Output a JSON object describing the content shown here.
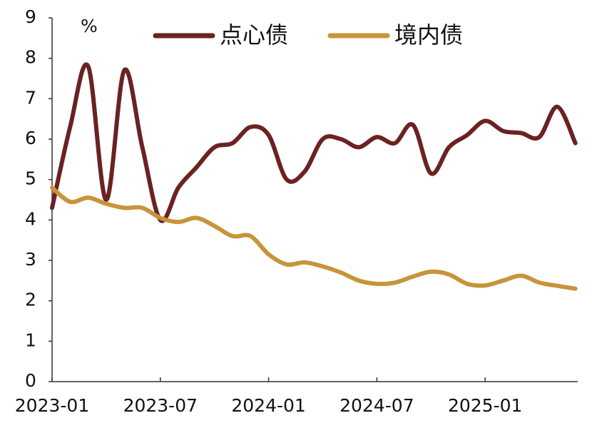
{
  "chart_data": {
    "type": "line",
    "y_label": "%",
    "categories": [
      "2023-01",
      null,
      null,
      null,
      null,
      null,
      "2023-07",
      null,
      null,
      null,
      null,
      null,
      "2024-01",
      null,
      null,
      null,
      null,
      null,
      "2024-07",
      null,
      null,
      null,
      null,
      null,
      "2025-01",
      null,
      null,
      null,
      null,
      null
    ],
    "series": [
      {
        "name": "点心债",
        "color": "#6b2222",
        "values": [
          4.3,
          6.3,
          7.8,
          4.5,
          7.7,
          5.8,
          4.0,
          4.8,
          5.3,
          5.8,
          5.9,
          6.3,
          6.1,
          5.0,
          5.2,
          6.0,
          6.0,
          5.8,
          6.05,
          5.9,
          6.35,
          5.15,
          5.8,
          6.1,
          6.45,
          6.2,
          6.15,
          6.05,
          6.8,
          5.9
        ]
      },
      {
        "name": "境内债",
        "color": "#c8943a",
        "values": [
          4.8,
          4.45,
          4.55,
          4.4,
          4.3,
          4.3,
          4.05,
          3.95,
          4.05,
          3.85,
          3.6,
          3.6,
          3.15,
          2.9,
          2.95,
          2.85,
          2.7,
          2.5,
          2.42,
          2.45,
          2.6,
          2.72,
          2.65,
          2.42,
          2.38,
          2.5,
          2.62,
          2.45,
          2.37,
          2.3
        ]
      }
    ],
    "ylim": [
      0,
      9
    ],
    "yticks": [
      0,
      1,
      2,
      3,
      4,
      5,
      6,
      7,
      8,
      9
    ],
    "legend": "top-right"
  }
}
